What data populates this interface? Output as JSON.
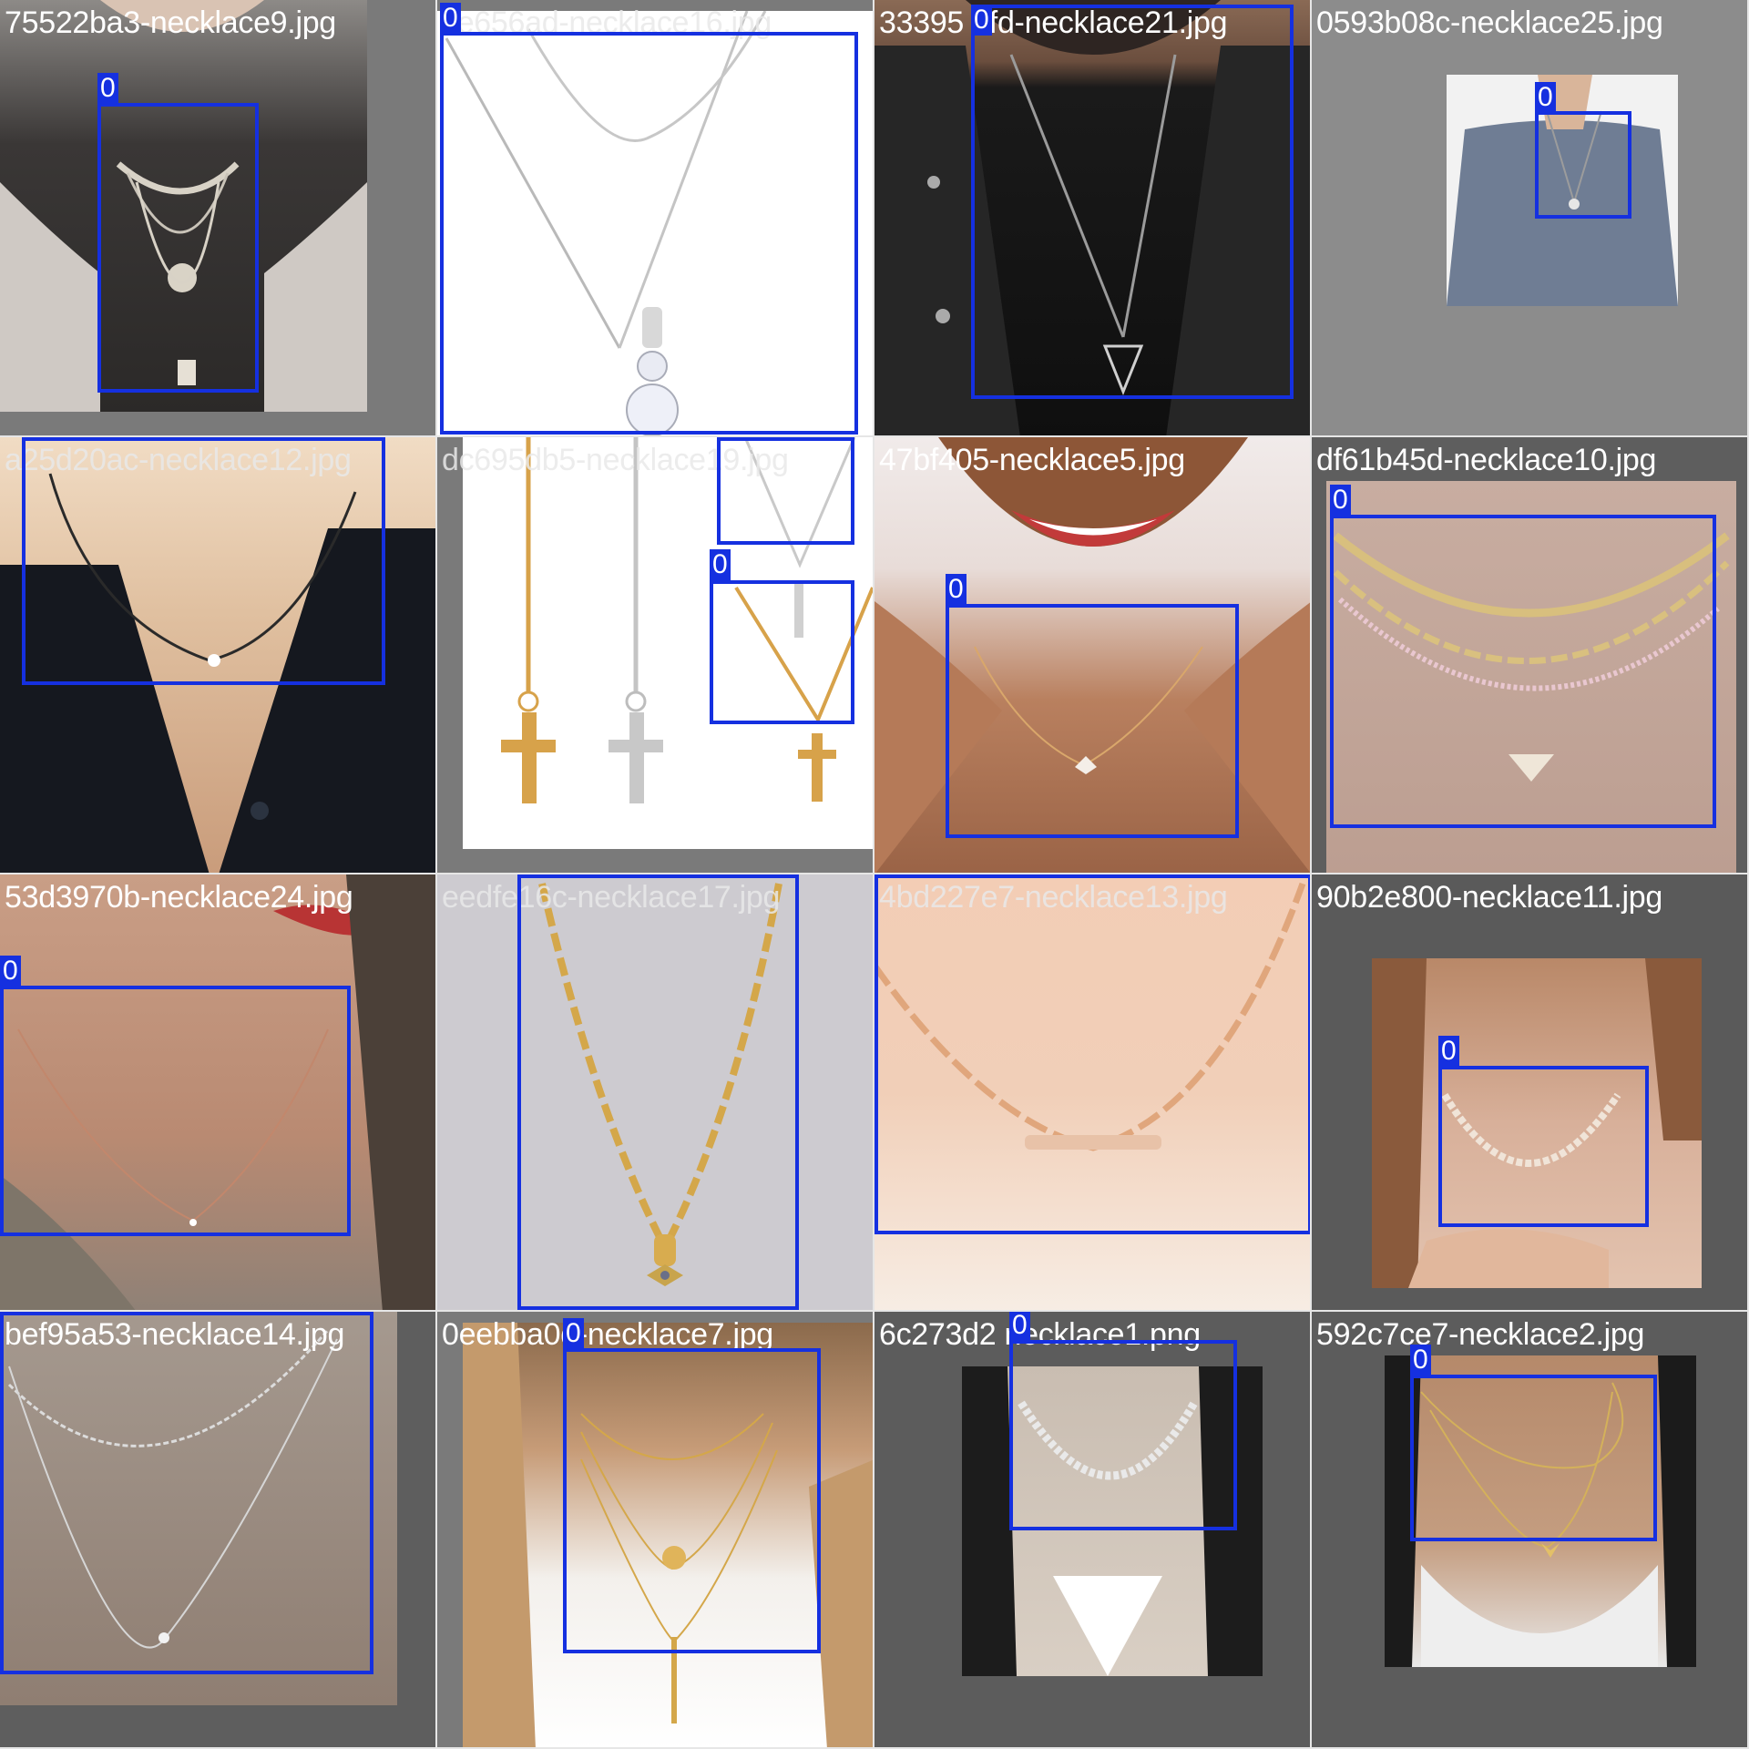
{
  "mosaic": {
    "tiles": [
      {
        "filename": "75522ba3-necklace9.jpg",
        "box_label": "0"
      },
      {
        "filename": "ce656ad-necklace16.jpg",
        "box_label": "0"
      },
      {
        "filename": "33395 0fd-necklace21.jpg",
        "box_label": "0"
      },
      {
        "filename": "0593b08c-necklace25.jpg",
        "box_label": "0"
      },
      {
        "filename": "a25d20ac-necklace12.jpg",
        "box_label": "0"
      },
      {
        "filename": "dc695db5-necklace19.jpg",
        "box_label": "0"
      },
      {
        "filename": "47bf405-necklace5.jpg",
        "box_label": "0"
      },
      {
        "filename": "df61b45d-necklace10.jpg",
        "box_label": "0"
      },
      {
        "filename": "53d3970b-necklace24.jpg",
        "box_label": "0"
      },
      {
        "filename": "eedfe16c-necklace17.jpg",
        "box_label": "0"
      },
      {
        "filename": "4bd227e7-necklace13.jpg",
        "box_label": "0"
      },
      {
        "filename": "90b2e800-necklace11.jpg",
        "box_label": "0"
      },
      {
        "filename": "bef95a53-necklace14.jpg",
        "box_label": "0"
      },
      {
        "filename": "0eebba0d-necklace7.jpg",
        "box_label": "0"
      },
      {
        "filename": "6c273d2 necklace1.png",
        "box_label": "0"
      },
      {
        "filename": "592c7ce7-necklace2.jpg",
        "box_label": "0"
      }
    ],
    "colors": {
      "box": "#1530e0",
      "separator": "#e6e6e6",
      "background": "#6e6e6e"
    }
  }
}
